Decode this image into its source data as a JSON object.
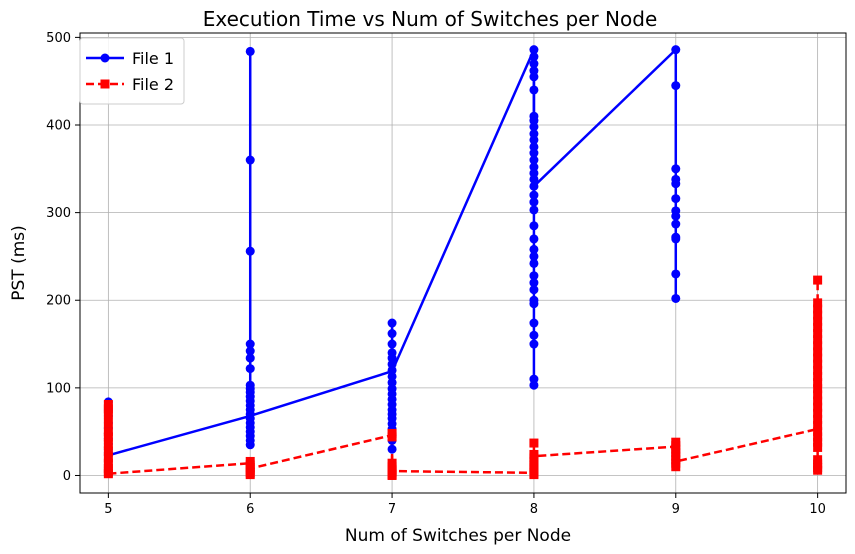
{
  "chart_data": {
    "type": "line",
    "title": "Execution Time vs Num of Switches per Node",
    "xlabel": "Num of Switches per Node",
    "ylabel": "PST (ms)",
    "xlim": [
      4.8,
      10.2
    ],
    "ylim": [
      -20,
      505
    ],
    "xticks": [
      5,
      6,
      7,
      8,
      9,
      10
    ],
    "yticks": [
      0,
      100,
      200,
      300,
      400,
      500
    ],
    "grid": true,
    "legend_position": "top-left",
    "series": [
      {
        "name": "File 1",
        "color": "#0000ff",
        "linestyle": "solid",
        "marker": "circle",
        "line": [
          [
            5,
            23
          ],
          [
            6,
            68
          ],
          [
            7,
            119
          ],
          [
            8,
            486
          ],
          [
            8,
            330
          ],
          [
            9,
            486
          ]
        ],
        "points": [
          [
            5,
            84
          ],
          [
            5,
            75
          ],
          [
            5,
            68
          ],
          [
            5,
            60
          ],
          [
            5,
            54
          ],
          [
            5,
            48
          ],
          [
            5,
            42
          ],
          [
            5,
            36
          ],
          [
            5,
            30
          ],
          [
            5,
            26
          ],
          [
            5,
            23
          ],
          [
            6,
            484
          ],
          [
            6,
            360
          ],
          [
            6,
            256
          ],
          [
            6,
            150
          ],
          [
            6,
            142
          ],
          [
            6,
            134
          ],
          [
            6,
            122
          ],
          [
            6,
            103
          ],
          [
            6,
            99
          ],
          [
            6,
            95
          ],
          [
            6,
            90
          ],
          [
            6,
            85
          ],
          [
            6,
            80
          ],
          [
            6,
            75
          ],
          [
            6,
            70
          ],
          [
            6,
            65
          ],
          [
            6,
            60
          ],
          [
            6,
            55
          ],
          [
            6,
            50
          ],
          [
            6,
            45
          ],
          [
            6,
            40
          ],
          [
            6,
            35
          ],
          [
            7,
            174
          ],
          [
            7,
            162
          ],
          [
            7,
            150
          ],
          [
            7,
            140
          ],
          [
            7,
            134
          ],
          [
            7,
            127
          ],
          [
            7,
            120
          ],
          [
            7,
            113
          ],
          [
            7,
            106
          ],
          [
            7,
            99
          ],
          [
            7,
            93
          ],
          [
            7,
            87
          ],
          [
            7,
            81
          ],
          [
            7,
            75
          ],
          [
            7,
            70
          ],
          [
            7,
            65
          ],
          [
            7,
            59
          ],
          [
            7,
            53
          ],
          [
            7,
            46
          ],
          [
            7,
            40
          ],
          [
            7,
            30
          ],
          [
            8,
            486
          ],
          [
            8,
            478
          ],
          [
            8,
            470
          ],
          [
            8,
            462
          ],
          [
            8,
            455
          ],
          [
            8,
            440
          ],
          [
            8,
            410
          ],
          [
            8,
            405
          ],
          [
            8,
            398
          ],
          [
            8,
            390
          ],
          [
            8,
            383
          ],
          [
            8,
            375
          ],
          [
            8,
            368
          ],
          [
            8,
            360
          ],
          [
            8,
            352
          ],
          [
            8,
            345
          ],
          [
            8,
            338
          ],
          [
            8,
            330
          ],
          [
            8,
            320
          ],
          [
            8,
            312
          ],
          [
            8,
            303
          ],
          [
            8,
            285
          ],
          [
            8,
            270
          ],
          [
            8,
            258
          ],
          [
            8,
            250
          ],
          [
            8,
            242
          ],
          [
            8,
            228
          ],
          [
            8,
            220
          ],
          [
            8,
            212
          ],
          [
            8,
            200
          ],
          [
            8,
            196
          ],
          [
            8,
            174
          ],
          [
            8,
            160
          ],
          [
            8,
            150
          ],
          [
            8,
            110
          ],
          [
            8,
            103
          ],
          [
            9,
            486
          ],
          [
            9,
            445
          ],
          [
            9,
            350
          ],
          [
            9,
            338
          ],
          [
            9,
            333
          ],
          [
            9,
            316
          ],
          [
            9,
            302
          ],
          [
            9,
            296
          ],
          [
            9,
            287
          ],
          [
            9,
            272
          ],
          [
            9,
            270
          ],
          [
            9,
            230
          ],
          [
            9,
            202
          ]
        ]
      },
      {
        "name": "File 2",
        "color": "#ff0000",
        "linestyle": "dashed",
        "marker": "square",
        "line": [
          [
            5,
            2
          ],
          [
            6,
            14
          ],
          [
            6,
            8
          ],
          [
            7,
            46
          ],
          [
            7,
            5
          ],
          [
            8,
            3
          ],
          [
            8,
            22
          ],
          [
            9,
            33
          ],
          [
            9,
            16
          ],
          [
            10,
            53
          ]
        ],
        "points": [
          [
            5,
            81
          ],
          [
            5,
            76
          ],
          [
            5,
            70
          ],
          [
            5,
            60
          ],
          [
            5,
            50
          ],
          [
            5,
            44
          ],
          [
            5,
            36
          ],
          [
            5,
            28
          ],
          [
            5,
            20
          ],
          [
            5,
            14
          ],
          [
            5,
            8
          ],
          [
            5,
            4
          ],
          [
            5,
            2
          ],
          [
            6,
            16
          ],
          [
            6,
            12
          ],
          [
            6,
            9
          ],
          [
            6,
            6
          ],
          [
            6,
            3
          ],
          [
            6,
            1
          ],
          [
            7,
            48
          ],
          [
            7,
            44
          ],
          [
            7,
            14
          ],
          [
            7,
            10
          ],
          [
            7,
            7
          ],
          [
            7,
            5
          ],
          [
            7,
            3
          ],
          [
            7,
            1
          ],
          [
            7,
            0
          ],
          [
            8,
            37
          ],
          [
            8,
            24
          ],
          [
            8,
            20
          ],
          [
            8,
            16
          ],
          [
            8,
            12
          ],
          [
            8,
            9
          ],
          [
            8,
            6
          ],
          [
            8,
            3
          ],
          [
            8,
            1
          ],
          [
            9,
            38
          ],
          [
            9,
            34
          ],
          [
            9,
            30
          ],
          [
            9,
            26
          ],
          [
            9,
            22
          ],
          [
            9,
            18
          ],
          [
            9,
            14
          ],
          [
            9,
            10
          ],
          [
            10,
            223
          ],
          [
            10,
            197
          ],
          [
            10,
            190
          ],
          [
            10,
            183
          ],
          [
            10,
            176
          ],
          [
            10,
            169
          ],
          [
            10,
            162
          ],
          [
            10,
            155
          ],
          [
            10,
            148
          ],
          [
            10,
            141
          ],
          [
            10,
            134
          ],
          [
            10,
            127
          ],
          [
            10,
            120
          ],
          [
            10,
            113
          ],
          [
            10,
            106
          ],
          [
            10,
            99
          ],
          [
            10,
            92
          ],
          [
            10,
            85
          ],
          [
            10,
            78
          ],
          [
            10,
            71
          ],
          [
            10,
            64
          ],
          [
            10,
            57
          ],
          [
            10,
            50
          ],
          [
            10,
            44
          ],
          [
            10,
            38
          ],
          [
            10,
            32
          ],
          [
            10,
            18
          ],
          [
            10,
            13
          ],
          [
            10,
            9
          ],
          [
            10,
            6
          ]
        ]
      }
    ]
  }
}
